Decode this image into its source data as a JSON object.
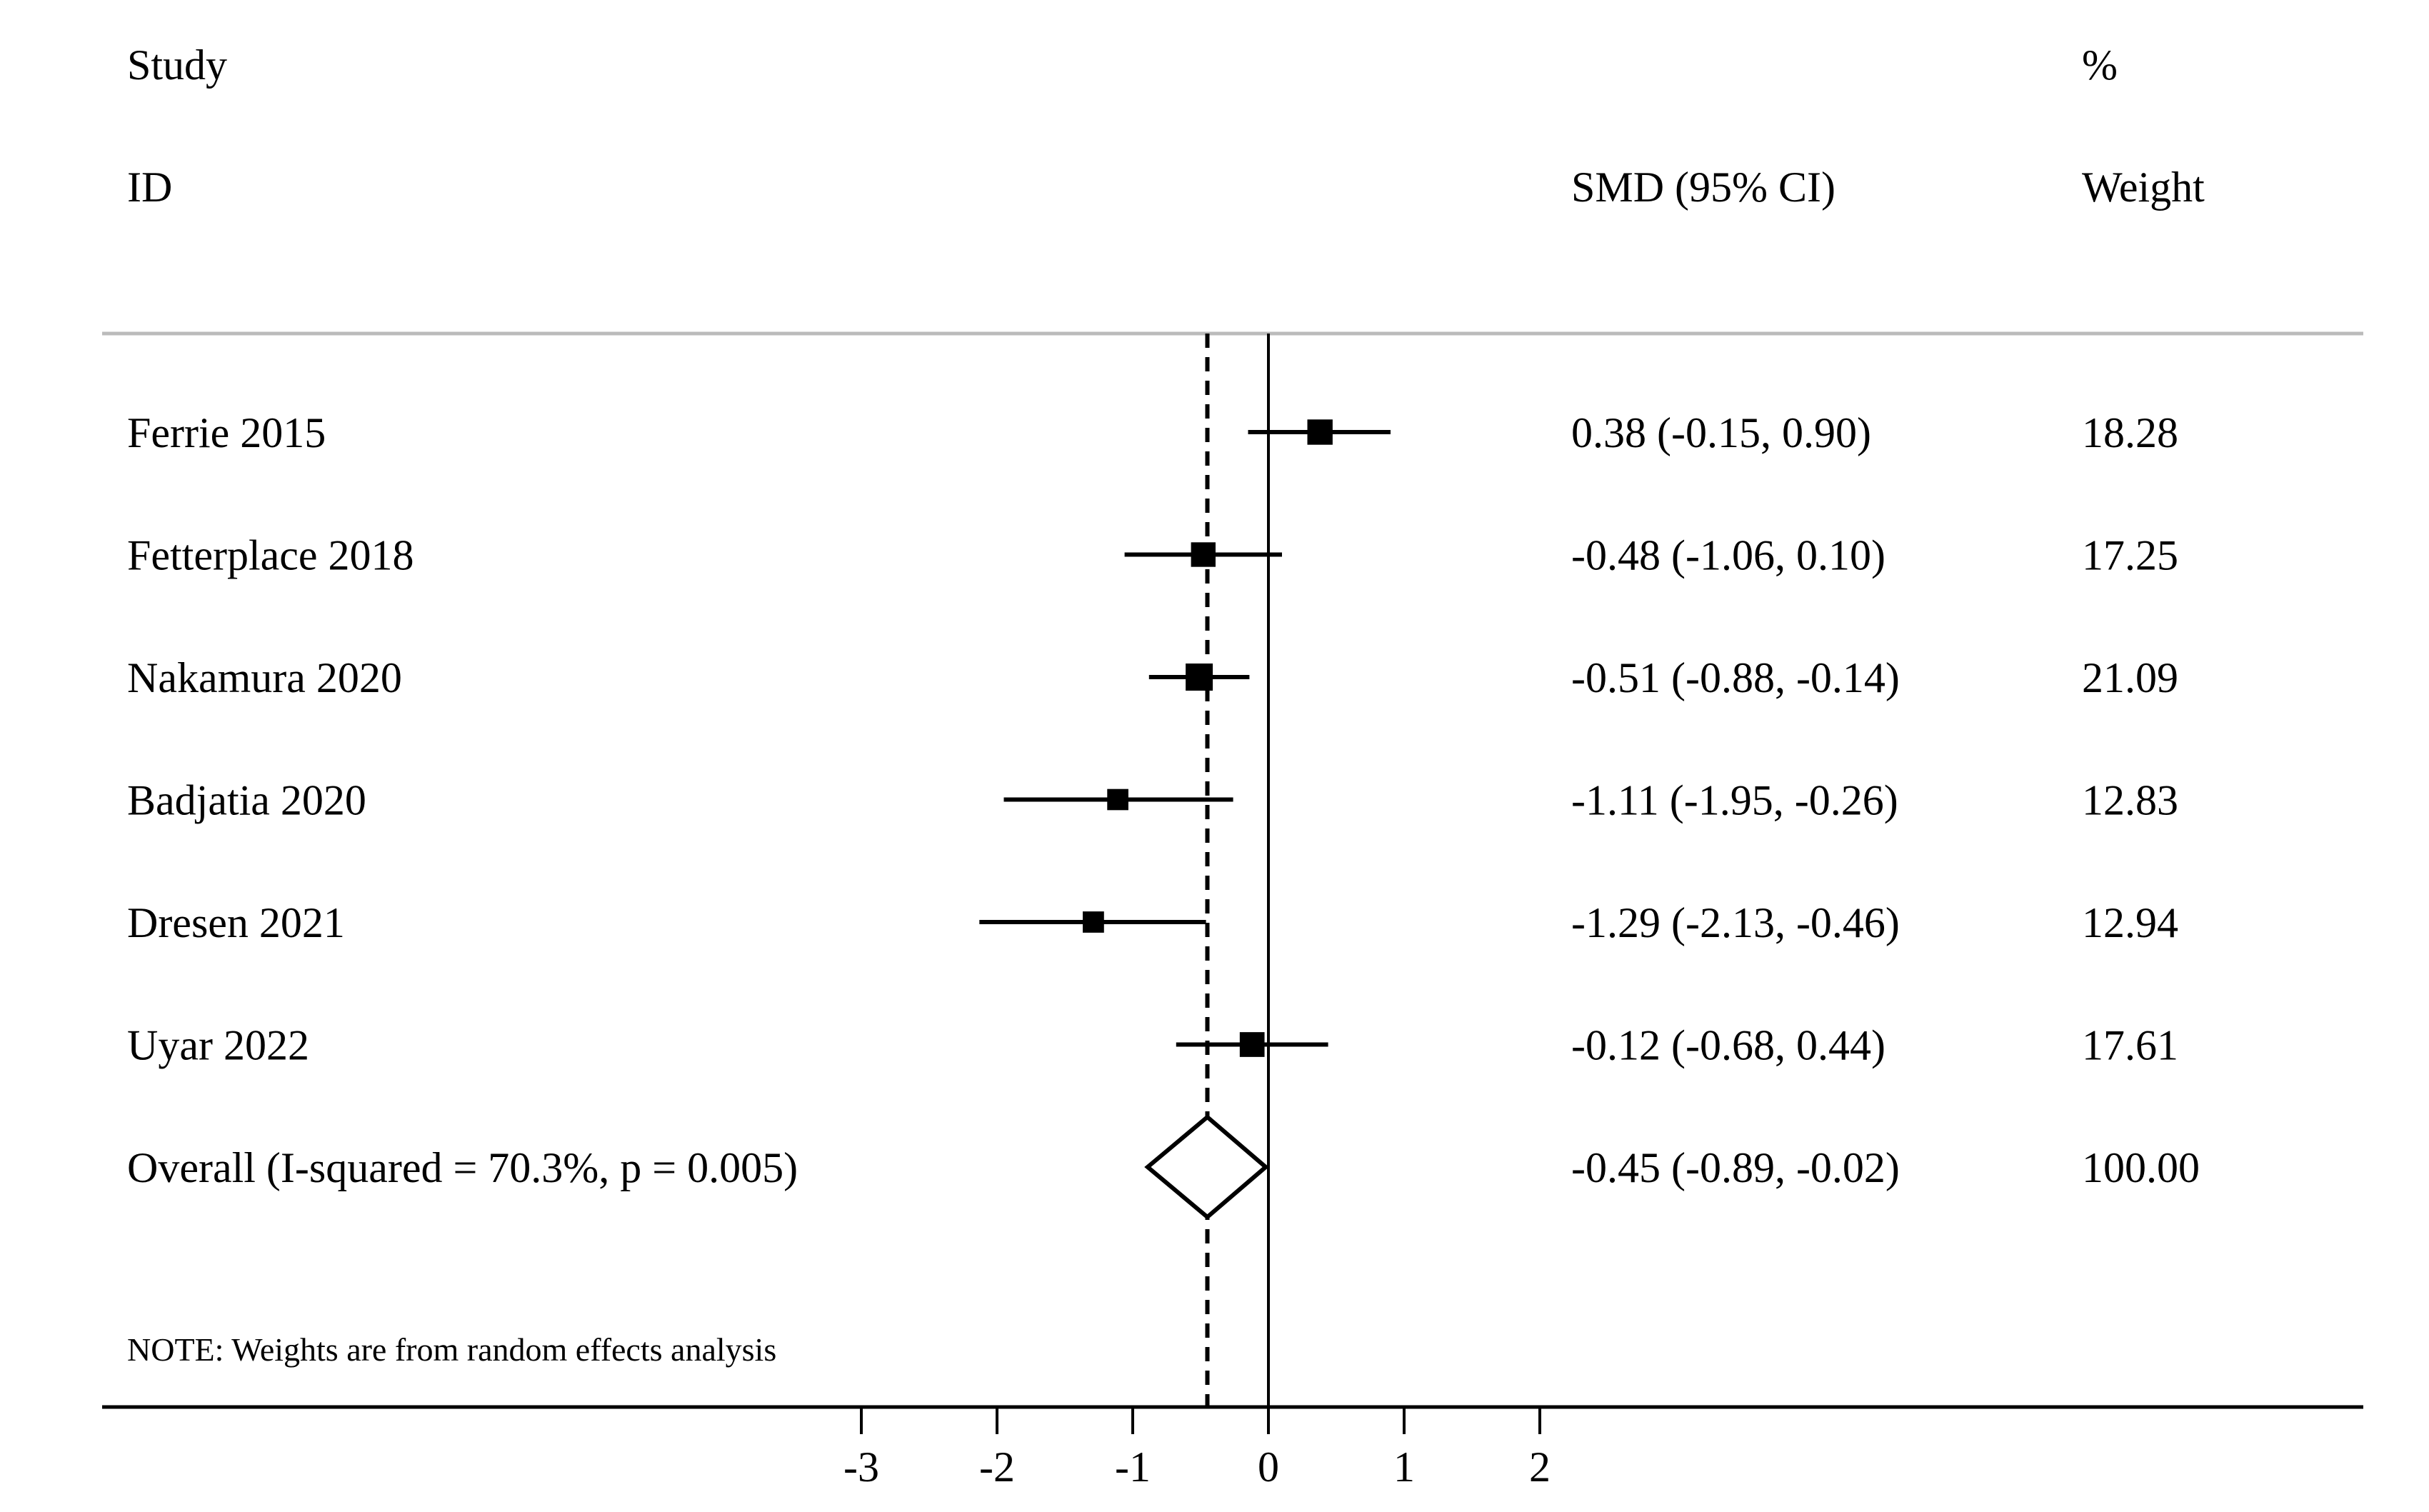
{
  "chart_data": {
    "type": "forest",
    "headers": {
      "study_top": "Study",
      "study_bottom": "ID",
      "effect": "SMD (95% CI)",
      "weight_top": "%",
      "weight_bottom": "Weight"
    },
    "studies": [
      {
        "label": "Ferrie  2015",
        "smd": 0.38,
        "lower": -0.15,
        "upper": 0.9,
        "ci_text": "0.38 (-0.15, 0.90)",
        "weight": 18.28,
        "weight_text": "18.28"
      },
      {
        "label": "Fetterplace 2018",
        "smd": -0.48,
        "lower": -1.06,
        "upper": 0.1,
        "ci_text": "-0.48 (-1.06, 0.10)",
        "weight": 17.25,
        "weight_text": "17.25"
      },
      {
        "label": "Nakamura 2020",
        "smd": -0.51,
        "lower": -0.88,
        "upper": -0.14,
        "ci_text": "-0.51 (-0.88, -0.14)",
        "weight": 21.09,
        "weight_text": "21.09"
      },
      {
        "label": "Badjatia 2020",
        "smd": -1.11,
        "lower": -1.95,
        "upper": -0.26,
        "ci_text": "-1.11 (-1.95, -0.26)",
        "weight": 12.83,
        "weight_text": "12.83"
      },
      {
        "label": "Dresen 2021",
        "smd": -1.29,
        "lower": -2.13,
        "upper": -0.46,
        "ci_text": "-1.29 (-2.13, -0.46)",
        "weight": 12.94,
        "weight_text": "12.94"
      },
      {
        "label": "Uyar 2022",
        "smd": -0.12,
        "lower": -0.68,
        "upper": 0.44,
        "ci_text": "-0.12 (-0.68, 0.44)",
        "weight": 17.61,
        "weight_text": "17.61"
      }
    ],
    "overall": {
      "label": "Overall  (I-squared = 70.3%, p = 0.005)",
      "smd": -0.45,
      "lower": -0.89,
      "upper": -0.02,
      "ci_text": "-0.45 (-0.89, -0.02)",
      "weight": 100.0,
      "weight_text": "100.00"
    },
    "note": "NOTE: Weights are from random effects analysis",
    "x_axis": {
      "ticks": [
        -3,
        -2,
        -1,
        0,
        1,
        2
      ],
      "tick_labels": [
        "-3",
        "-2",
        "-1",
        "0",
        "1",
        "2"
      ],
      "null_line": 0
    }
  }
}
